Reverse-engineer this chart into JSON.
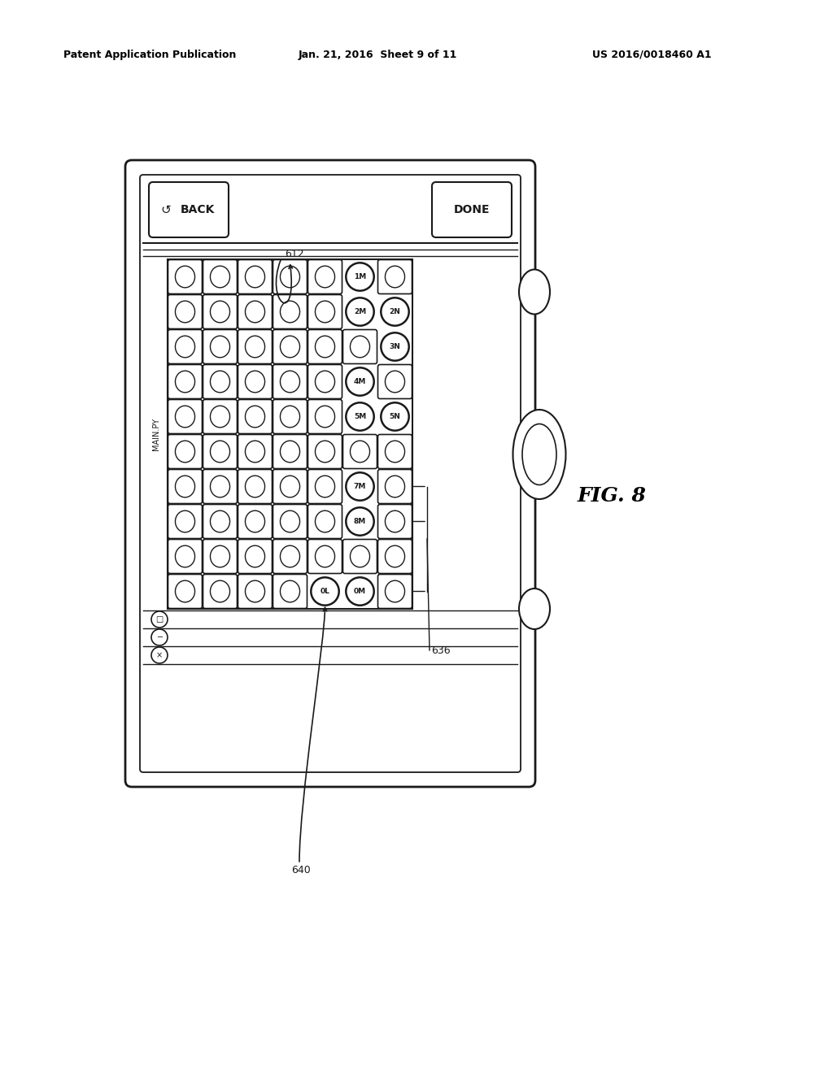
{
  "header_left": "Patent Application Publication",
  "header_mid": "Jan. 21, 2016  Sheet 9 of 11",
  "header_right": "US 2016/0018460 A1",
  "fig_label": "FIG. 8",
  "ref_612": "612",
  "ref_636": "636",
  "ref_640": "640",
  "back_label": "BACK",
  "done_label": "DONE",
  "main_py_label": "MAIN.PY",
  "grid_cols": 7,
  "grid_rows": 10,
  "labeled_cells": [
    {
      "row": 0,
      "col": 5,
      "label": "1M"
    },
    {
      "row": 1,
      "col": 5,
      "label": "2M"
    },
    {
      "row": 1,
      "col": 6,
      "label": "2N"
    },
    {
      "row": 2,
      "col": 6,
      "label": "3N"
    },
    {
      "row": 3,
      "col": 5,
      "label": "4M"
    },
    {
      "row": 4,
      "col": 5,
      "label": "5M"
    },
    {
      "row": 4,
      "col": 6,
      "label": "5N"
    },
    {
      "row": 6,
      "col": 5,
      "label": "7M"
    },
    {
      "row": 7,
      "col": 5,
      "label": "8M"
    },
    {
      "row": 9,
      "col": 4,
      "label": "0L"
    },
    {
      "row": 9,
      "col": 5,
      "label": "0M"
    }
  ],
  "bg_color": "#ffffff",
  "line_color": "#1a1a1a"
}
